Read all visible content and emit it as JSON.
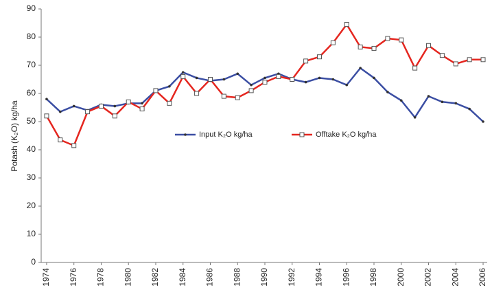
{
  "chart_data": {
    "type": "line",
    "y_label": "Potash (K₂O) kg/ha",
    "x": [
      1974,
      1975,
      1976,
      1977,
      1978,
      1979,
      1980,
      1981,
      1982,
      1983,
      1984,
      1985,
      1986,
      1987,
      1988,
      1989,
      1990,
      1991,
      1992,
      1993,
      1994,
      1995,
      1996,
      1997,
      1998,
      1999,
      2000,
      2001,
      2002,
      2003,
      2004,
      2005,
      2006
    ],
    "series": [
      {
        "name": "Input K₂O kg/ha",
        "color": "#3b4ea3",
        "marker": "dot",
        "values": [
          58,
          53.5,
          55.5,
          54,
          56,
          55.5,
          56.5,
          56.5,
          61,
          62.5,
          67.5,
          65.5,
          64.5,
          65,
          67,
          63,
          65.5,
          67,
          65,
          64,
          65.5,
          65,
          63,
          69,
          65.5,
          60.5,
          57.5,
          51.5,
          59,
          57,
          56.5,
          54.5,
          50
        ]
      },
      {
        "name": "Offtake K₂O kg/ha",
        "color": "#e5261f",
        "marker": "square",
        "values": [
          52,
          43.5,
          41.5,
          53.5,
          55.5,
          52,
          57,
          54.5,
          61,
          56.5,
          66,
          60,
          65,
          59,
          58.5,
          61,
          64,
          66,
          65,
          71.5,
          73,
          78,
          84.5,
          76.5,
          76,
          79.5,
          79,
          69,
          77,
          73.5,
          70.5,
          72,
          72
        ]
      }
    ],
    "xlim": [
      1973.6,
      2006.3
    ],
    "xticks": [
      1974,
      1976,
      1978,
      1980,
      1982,
      1984,
      1986,
      1988,
      1990,
      1992,
      1994,
      1996,
      1998,
      2000,
      2002,
      2004,
      2006
    ],
    "ylim": [
      0,
      90
    ],
    "yticks": [
      0,
      10,
      20,
      30,
      40,
      50,
      60,
      70,
      80,
      90
    ],
    "grid": false,
    "legend": "center"
  }
}
